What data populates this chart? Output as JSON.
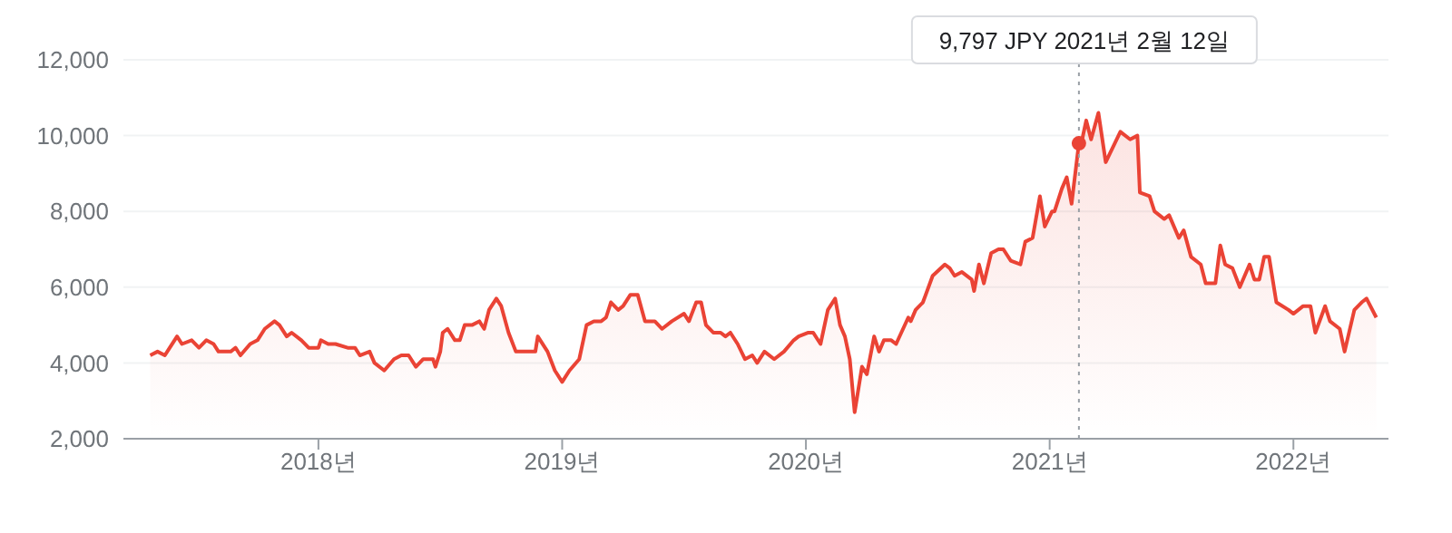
{
  "chart_data": {
    "type": "area",
    "xlim": [
      2017.2,
      2022.39
    ],
    "xticks": [
      {
        "value": 2018,
        "label": "2018년"
      },
      {
        "value": 2019,
        "label": "2019년"
      },
      {
        "value": 2020,
        "label": "2020년"
      },
      {
        "value": 2021,
        "label": "2021년"
      },
      {
        "value": 2022,
        "label": "2022년"
      }
    ],
    "ylim": [
      2000,
      12000
    ],
    "yticks": [
      {
        "value": 2000,
        "label": "2,000"
      },
      {
        "value": 4000,
        "label": "4,000"
      },
      {
        "value": 6000,
        "label": "6,000"
      },
      {
        "value": 8000,
        "label": "8,000"
      },
      {
        "value": 10000,
        "label": "10,000"
      },
      {
        "value": 12000,
        "label": "12,000"
      }
    ],
    "grid": "y",
    "legend": false,
    "marker": "none",
    "line_style": "solid",
    "ref_lines": [
      {
        "axis": "x",
        "value": 2021.12,
        "label": null,
        "color": "#9aa0a6",
        "line_style": "dotted"
      }
    ],
    "annotations": [
      "9,797 JPY  2021년 2월 12일"
    ],
    "series": [
      {
        "color": "#ea4335",
        "x": [
          2017.31,
          2017.34,
          2017.37,
          2017.39,
          2017.42,
          2017.44,
          2017.48,
          2017.51,
          2017.54,
          2017.57,
          2017.59,
          2017.64,
          2017.66,
          2017.68,
          2017.72,
          2017.75,
          2017.78,
          2017.82,
          2017.84,
          2017.87,
          2017.89,
          2017.93,
          2017.96,
          2018.0,
          2018.01,
          2018.04,
          2018.07,
          2018.12,
          2018.15,
          2018.17,
          2018.21,
          2018.23,
          2018.27,
          2018.31,
          2018.34,
          2018.37,
          2018.4,
          2018.43,
          2018.47,
          2018.48,
          2018.5,
          2018.51,
          2018.53,
          2018.56,
          2018.58,
          2018.6,
          2018.63,
          2018.66,
          2018.68,
          2018.7,
          2018.73,
          2018.75,
          2018.78,
          2018.81,
          2018.86,
          2018.89,
          2018.9,
          2018.94,
          2018.97,
          2019.0,
          2019.03,
          2019.07,
          2019.1,
          2019.13,
          2019.16,
          2019.18,
          2019.2,
          2019.23,
          2019.25,
          2019.28,
          2019.31,
          2019.34,
          2019.38,
          2019.41,
          2019.45,
          2019.5,
          2019.52,
          2019.55,
          2019.57,
          2019.59,
          2019.62,
          2019.65,
          2019.67,
          2019.69,
          2019.72,
          2019.75,
          2019.78,
          2019.8,
          2019.83,
          2019.87,
          2019.91,
          2019.95,
          2019.97,
          2020.01,
          2020.03,
          2020.06,
          2020.09,
          2020.12,
          2020.14,
          2020.16,
          2020.18,
          2020.2,
          2020.23,
          2020.25,
          2020.28,
          2020.3,
          2020.32,
          2020.35,
          2020.37,
          2020.42,
          2020.43,
          2020.45,
          2020.48,
          2020.52,
          2020.57,
          2020.59,
          2020.61,
          2020.64,
          2020.68,
          2020.69,
          2020.71,
          2020.73,
          2020.76,
          2020.79,
          2020.81,
          2020.84,
          2020.88,
          2020.9,
          2020.93,
          2020.96,
          2020.98,
          2021.01,
          2021.02,
          2021.05,
          2021.07,
          2021.09,
          2021.12,
          2021.13,
          2021.15,
          2021.17,
          2021.2,
          2021.23,
          2021.26,
          2021.29,
          2021.33,
          2021.36,
          2021.37,
          2021.41,
          2021.43,
          2021.47,
          2021.49,
          2021.53,
          2021.55,
          2021.58,
          2021.62,
          2021.64,
          2021.68,
          2021.7,
          2021.72,
          2021.75,
          2021.78,
          2021.82,
          2021.84,
          2021.86,
          2021.88,
          2021.9,
          2021.93,
          2021.98,
          2022.0,
          2022.04,
          2022.07,
          2022.09,
          2022.13,
          2022.15,
          2022.19,
          2022.21,
          2022.25,
          2022.28,
          2022.3,
          2022.34
        ],
        "values": [
          4200,
          4300,
          4200,
          4400,
          4700,
          4500,
          4600,
          4400,
          4600,
          4500,
          4300,
          4300,
          4400,
          4200,
          4500,
          4600,
          4900,
          5100,
          5000,
          4700,
          4800,
          4600,
          4400,
          4400,
          4600,
          4500,
          4500,
          4400,
          4400,
          4200,
          4300,
          4000,
          3800,
          4100,
          4200,
          4200,
          3900,
          4100,
          4100,
          3900,
          4300,
          4800,
          4900,
          4600,
          4600,
          5000,
          5000,
          5100,
          4900,
          5400,
          5700,
          5500,
          4800,
          4300,
          4300,
          4300,
          4700,
          4300,
          3800,
          3500,
          3800,
          4100,
          5000,
          5100,
          5100,
          5200,
          5600,
          5400,
          5500,
          5800,
          5800,
          5100,
          5100,
          4900,
          5100,
          5300,
          5100,
          5600,
          5600,
          5000,
          4800,
          4800,
          4700,
          4800,
          4500,
          4100,
          4200,
          4000,
          4300,
          4100,
          4300,
          4600,
          4700,
          4800,
          4800,
          4500,
          5400,
          5700,
          5000,
          4700,
          4100,
          2700,
          3900,
          3700,
          4700,
          4300,
          4600,
          4600,
          4500,
          5200,
          5100,
          5400,
          5600,
          6300,
          6600,
          6500,
          6300,
          6400,
          6200,
          5900,
          6600,
          6100,
          6900,
          7000,
          7000,
          6700,
          6600,
          7200,
          7300,
          8400,
          7600,
          8000,
          8000,
          8600,
          8900,
          8200,
          9797,
          9800,
          10400,
          9900,
          10600,
          9300,
          9700,
          10100,
          9900,
          10000,
          8500,
          8400,
          8000,
          7800,
          7900,
          7300,
          7500,
          6800,
          6600,
          6100,
          6100,
          7100,
          6600,
          6500,
          6000,
          6600,
          6200,
          6200,
          6800,
          6800,
          5600,
          5400,
          5300,
          5500,
          5500,
          4800,
          5500,
          5100,
          4900,
          4300,
          5400,
          5600,
          5700,
          5200
        ]
      }
    ]
  }
}
